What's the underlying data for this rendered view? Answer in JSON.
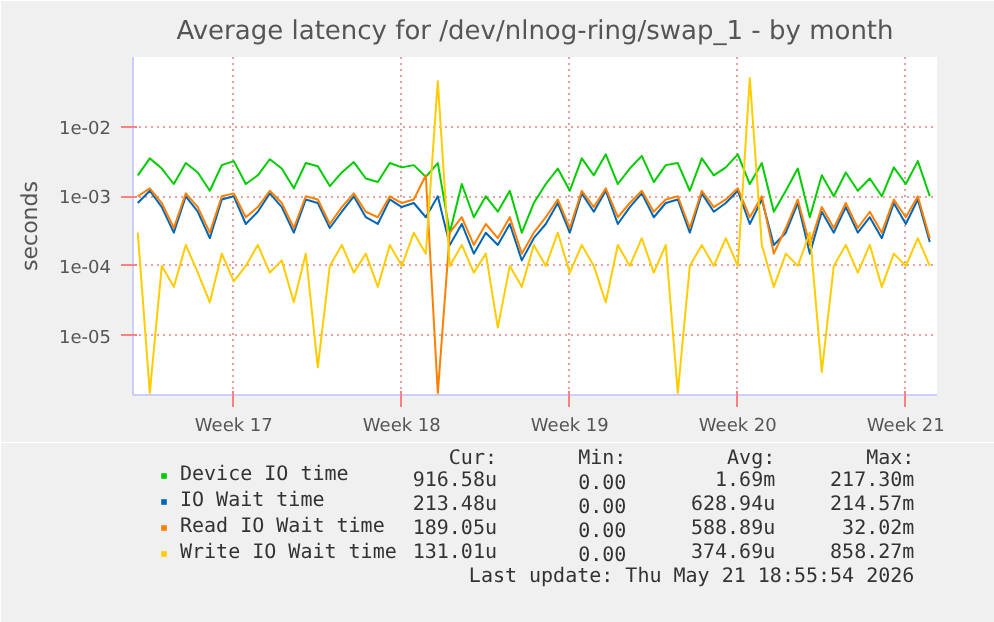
{
  "chart_data": {
    "type": "line",
    "title": "Average latency for /dev/nlnog-ring/swap_1 - by month",
    "ylabel": "seconds",
    "log": "y",
    "ylim": [
      1.4e-06,
      0.1
    ],
    "yticks": [
      {
        "value": 1e-05,
        "label": "1e-05"
      },
      {
        "value": 0.0001,
        "label": "1e-04"
      },
      {
        "value": 0.001,
        "label": "1e-03"
      },
      {
        "value": 0.01,
        "label": "1e-02"
      }
    ],
    "grid": true,
    "legend": "bottom",
    "categories": [
      null,
      null,
      null,
      null,
      null,
      null,
      null,
      null,
      "Week 17",
      null,
      null,
      null,
      null,
      null,
      null,
      null,
      null,
      null,
      null,
      null,
      null,
      null,
      "Week 18",
      null,
      null,
      null,
      null,
      null,
      null,
      null,
      null,
      null,
      null,
      null,
      null,
      null,
      "Week 19",
      null,
      null,
      null,
      null,
      null,
      null,
      null,
      null,
      null,
      null,
      null,
      null,
      null,
      "Week 20",
      null,
      null,
      null,
      null,
      null,
      null,
      null,
      null,
      null,
      null,
      null,
      null,
      null,
      "Week 21",
      null,
      null
    ],
    "series": [
      {
        "name": "Device IO time",
        "color": "#00cc00",
        "values": [
          0.002,
          0.0035,
          0.0025,
          0.0015,
          0.003,
          0.0022,
          0.0012,
          0.0028,
          0.0032,
          0.0015,
          0.002,
          0.0034,
          0.0025,
          0.0013,
          0.003,
          0.0027,
          0.0014,
          0.0022,
          0.0031,
          0.0018,
          0.0016,
          0.003,
          0.0026,
          0.0028,
          0.0019,
          0.003,
          0.0003,
          0.0015,
          0.0005,
          0.001,
          0.0006,
          0.0012,
          0.0003,
          0.0008,
          0.0015,
          0.0025,
          0.0012,
          0.0035,
          0.002,
          0.004,
          0.0015,
          0.0025,
          0.0038,
          0.0016,
          0.0028,
          0.003,
          0.0012,
          0.0035,
          0.002,
          0.0026,
          0.004,
          0.0015,
          0.003,
          0.0006,
          0.0012,
          0.0025,
          0.0005,
          0.002,
          0.001,
          0.0022,
          0.0012,
          0.0018,
          0.001,
          0.0026,
          0.0015,
          0.0032,
          0.001
        ]
      },
      {
        "name": "IO Wait time",
        "color": "#0066b3",
        "values": [
          0.0008,
          0.0012,
          0.0007,
          0.0003,
          0.001,
          0.0006,
          0.00025,
          0.0009,
          0.001,
          0.0004,
          0.0006,
          0.0011,
          0.0007,
          0.0003,
          0.0009,
          0.0008,
          0.00035,
          0.0006,
          0.001,
          0.0005,
          0.0004,
          0.0009,
          0.0007,
          0.0008,
          0.0005,
          0.001,
          0.0002,
          0.0004,
          0.00015,
          0.0003,
          0.0002,
          0.0004,
          0.00012,
          0.00025,
          0.0004,
          0.0008,
          0.0003,
          0.0011,
          0.0006,
          0.0012,
          0.0004,
          0.0007,
          0.0011,
          0.0005,
          0.0008,
          0.0009,
          0.0003,
          0.0011,
          0.0006,
          0.0008,
          0.0012,
          0.0004,
          0.0009,
          0.0002,
          0.0003,
          0.0008,
          0.00015,
          0.0006,
          0.0003,
          0.0007,
          0.0003,
          0.0005,
          0.00025,
          0.0008,
          0.0004,
          0.0009,
          0.00022
        ]
      },
      {
        "name": "Read IO Wait time",
        "color": "#ff8000",
        "values": [
          0.001,
          0.0013,
          0.0008,
          0.00035,
          0.0011,
          0.0007,
          0.0003,
          0.001,
          0.0011,
          0.0005,
          0.0007,
          0.0012,
          0.0008,
          0.00035,
          0.001,
          0.0009,
          0.0004,
          0.0007,
          0.0011,
          0.0006,
          0.0005,
          0.001,
          0.0008,
          0.0009,
          0.002,
          1.5e-06,
          0.0003,
          0.0005,
          0.0002,
          0.0004,
          0.00025,
          0.0005,
          0.00015,
          0.0003,
          0.0005,
          0.0009,
          0.00035,
          0.0012,
          0.0007,
          0.0013,
          0.0005,
          0.0008,
          0.0012,
          0.0006,
          0.0009,
          0.001,
          0.00035,
          0.0012,
          0.0007,
          0.0009,
          0.0013,
          0.0005,
          0.001,
          0.00015,
          0.00035,
          0.0009,
          0.0002,
          0.0007,
          0.00035,
          0.0008,
          0.00035,
          0.0006,
          0.0003,
          0.0009,
          0.0005,
          0.001,
          0.00025
        ]
      },
      {
        "name": "Write IO Wait time",
        "color": "#ffcc00",
        "values": [
          0.0003,
          1.5e-06,
          0.0001,
          5e-05,
          0.0002,
          8e-05,
          3e-05,
          0.00015,
          6e-05,
          0.0001,
          0.0002,
          8e-05,
          0.00012,
          3e-05,
          0.00015,
          3.5e-06,
          0.0001,
          0.0002,
          8e-05,
          0.00015,
          5e-05,
          0.0002,
          0.0001,
          0.0003,
          0.00015,
          0.045,
          0.0001,
          0.0002,
          8e-05,
          0.00015,
          1.3e-05,
          0.0001,
          5e-05,
          0.0002,
          0.0001,
          0.0003,
          8e-05,
          0.0002,
          0.0001,
          3e-05,
          0.0002,
          0.0001,
          0.00025,
          8e-05,
          0.0002,
          1.5e-06,
          0.0001,
          0.0002,
          0.0001,
          0.00025,
          0.0001,
          0.05,
          0.0002,
          5e-05,
          0.00015,
          0.0001,
          0.0003,
          3e-06,
          0.0001,
          0.0002,
          8e-05,
          0.0002,
          5e-05,
          0.00015,
          0.0001,
          0.00025,
          0.0001
        ]
      }
    ],
    "annotations": [
      "Cur:",
      "Min:",
      "Avg:",
      "Max:",
      "916.58u",
      "0.00",
      "1.69m",
      "217.30m",
      "213.48u",
      "0.00",
      "628.94u",
      "214.57m",
      "189.05u",
      "0.00",
      "588.89u",
      "32.02m",
      "131.01u",
      "0.00",
      "374.69u",
      "858.27m",
      "Last update: Thu May 21 18:55:54 2026"
    ]
  }
}
